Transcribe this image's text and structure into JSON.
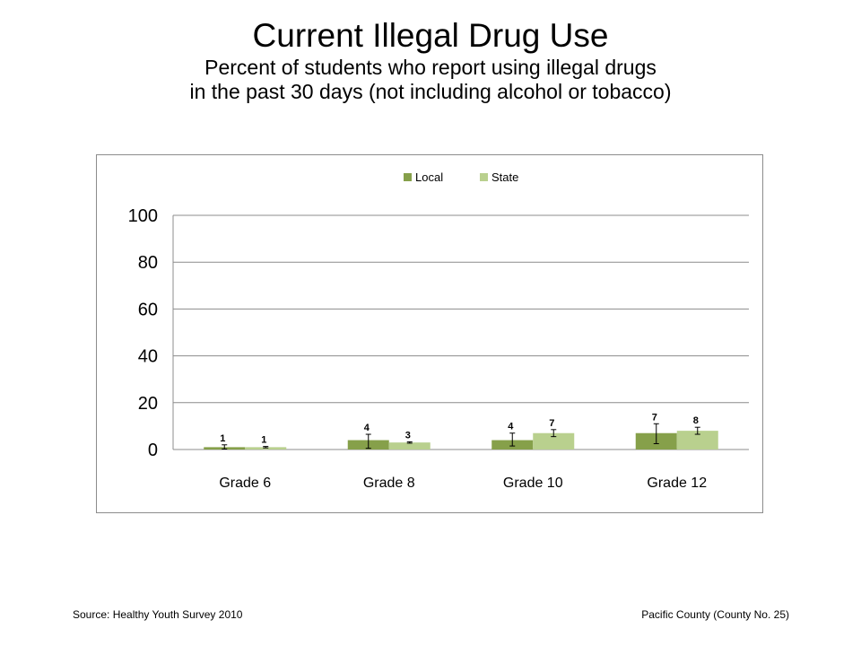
{
  "title": "Current Illegal Drug Use",
  "subtitle_lines": [
    "Percent of students who report using illegal drugs",
    "in the past 30 days (not including alcohol or tobacco)"
  ],
  "footer": {
    "source": "Source: Healthy Youth Survey 2010",
    "county": "Pacific County (County No. 25)"
  },
  "colors": {
    "local": "#86a04a",
    "state": "#b9d08e",
    "grid": "#8c8c8c",
    "error_bar": "#000000"
  },
  "chart_data": {
    "type": "bar",
    "categories": [
      "Grade 6",
      "Grade 8",
      "Grade 10",
      "Grade 12"
    ],
    "series": [
      {
        "name": "Local",
        "values": [
          1,
          4,
          4,
          7
        ],
        "labels": [
          "1",
          "4",
          "4",
          "7"
        ],
        "error_low": [
          0.2,
          0.5,
          1.5,
          2.5
        ],
        "error_high": [
          2,
          6.5,
          7,
          11
        ]
      },
      {
        "name": "State",
        "values": [
          1,
          3,
          7,
          8
        ],
        "labels": [
          "1",
          "3",
          "7",
          "8"
        ],
        "error_low": [
          0.7,
          2.7,
          5.5,
          6.5
        ],
        "error_high": [
          1.3,
          3.3,
          8.5,
          9.5
        ]
      }
    ],
    "ylim": [
      0,
      100
    ],
    "yticks": [
      0,
      20,
      40,
      60,
      80,
      100
    ],
    "ytick_labels": [
      "0",
      "20",
      "40",
      "60",
      "80",
      "100"
    ],
    "grid": true,
    "legend_position": "top-center",
    "error_bars": true
  }
}
